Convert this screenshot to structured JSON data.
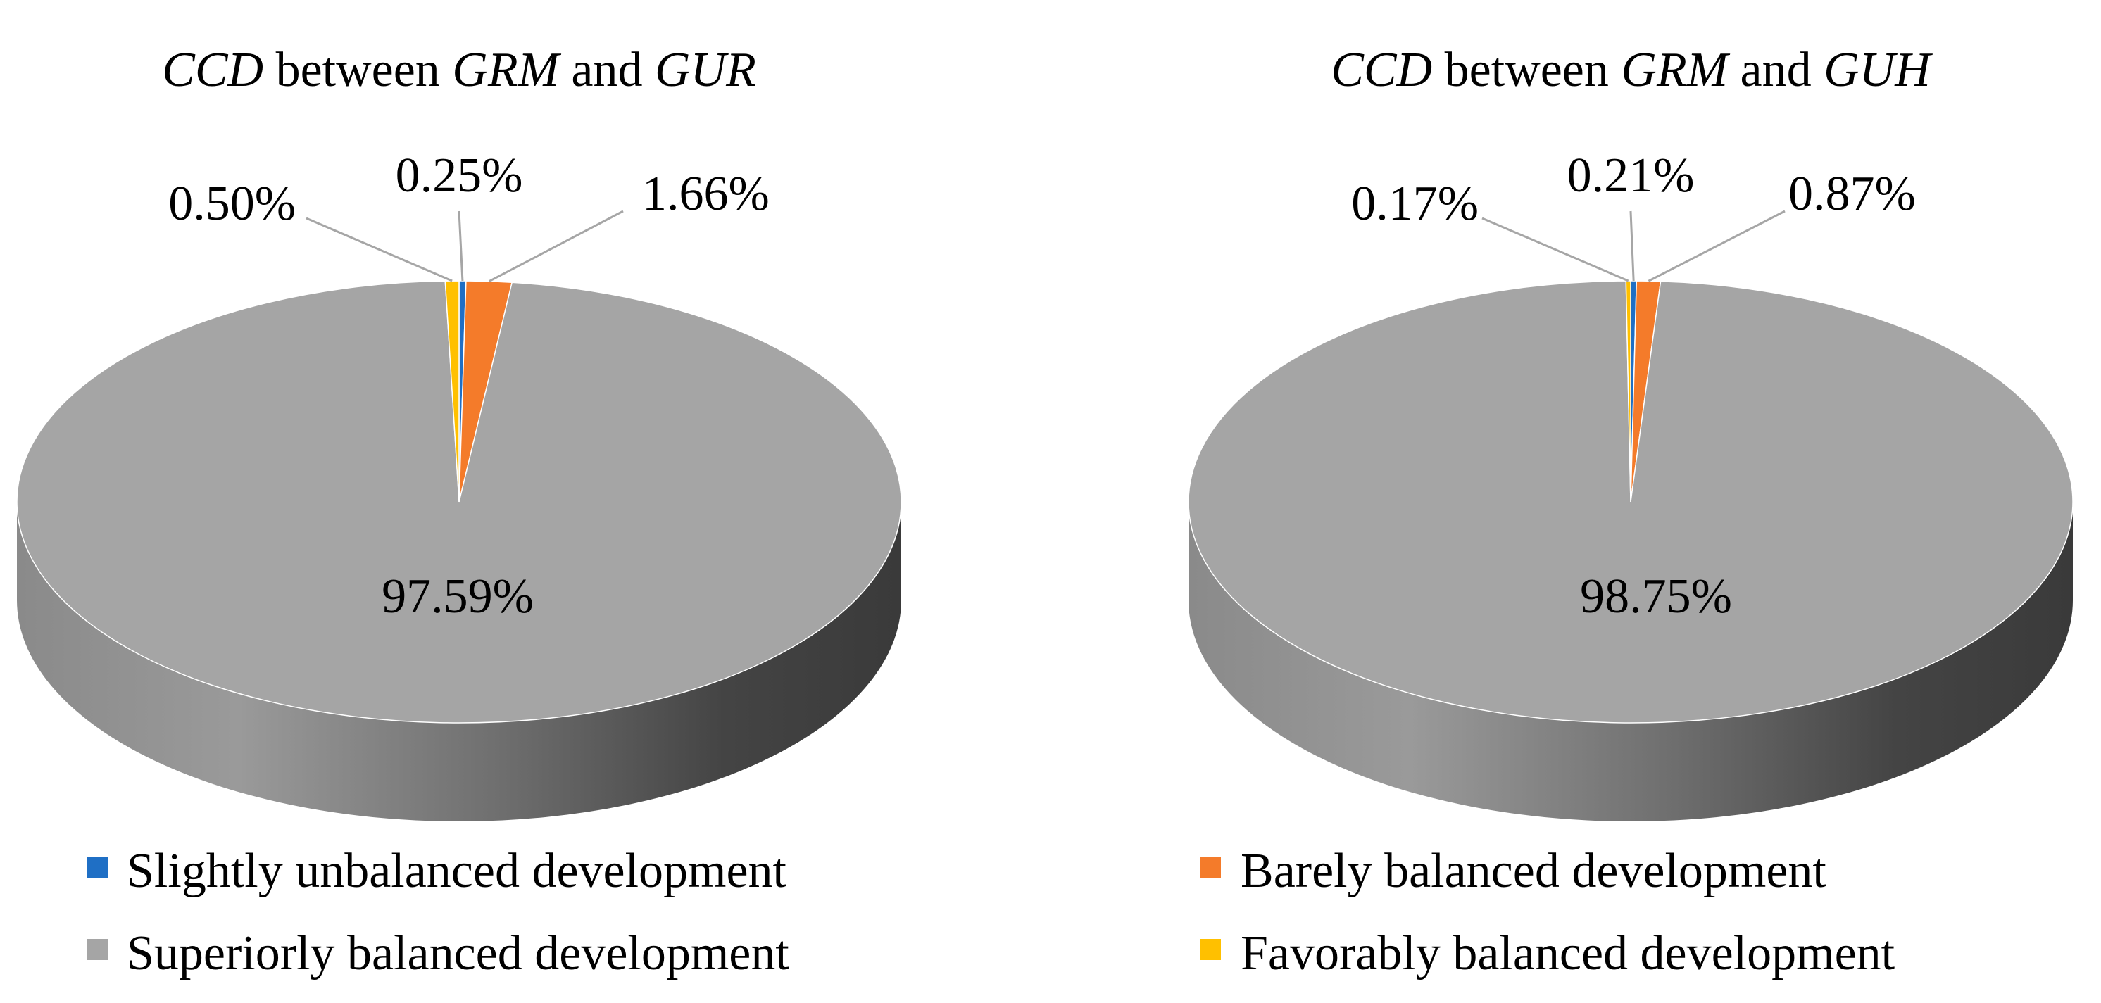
{
  "chart_data": [
    {
      "type": "pie",
      "title": {
        "parts": [
          "CCD",
          " between ",
          "GRM",
          " and ",
          "GUR"
        ],
        "italic": [
          true,
          false,
          true,
          false,
          true
        ]
      },
      "slices": [
        {
          "label": "Slightly unbalanced development",
          "value": 0.25,
          "text": "0.25%"
        },
        {
          "label": "Barely balanced development",
          "value": 1.66,
          "text": "1.66%"
        },
        {
          "label": "Superiorly balanced development",
          "value": 97.59,
          "text": "97.59%"
        },
        {
          "label": "Favorably balanced development",
          "value": 0.5,
          "text": "0.50%"
        }
      ]
    },
    {
      "type": "pie",
      "title": {
        "parts": [
          "CCD",
          " between ",
          "GRM",
          " and ",
          "GUH"
        ],
        "italic": [
          true,
          false,
          true,
          false,
          true
        ]
      },
      "slices": [
        {
          "label": "Slightly unbalanced development",
          "value": 0.21,
          "text": "0.21%"
        },
        {
          "label": "Barely balanced development",
          "value": 0.87,
          "text": "0.87%"
        },
        {
          "label": "Superiorly balanced development",
          "value": 98.75,
          "text": "98.75%"
        },
        {
          "label": "Favorably balanced development",
          "value": 0.17,
          "text": "0.17%"
        }
      ]
    }
  ],
  "legend": [
    {
      "label": "Slightly unbalanced development",
      "color": "#1F6FC5"
    },
    {
      "label": "Barely balanced development",
      "color": "#F47B2A"
    },
    {
      "label": "Superiorly balanced development",
      "color": "#A5A5A5"
    },
    {
      "label": "Favorably balanced development",
      "color": "#FFC000"
    }
  ]
}
